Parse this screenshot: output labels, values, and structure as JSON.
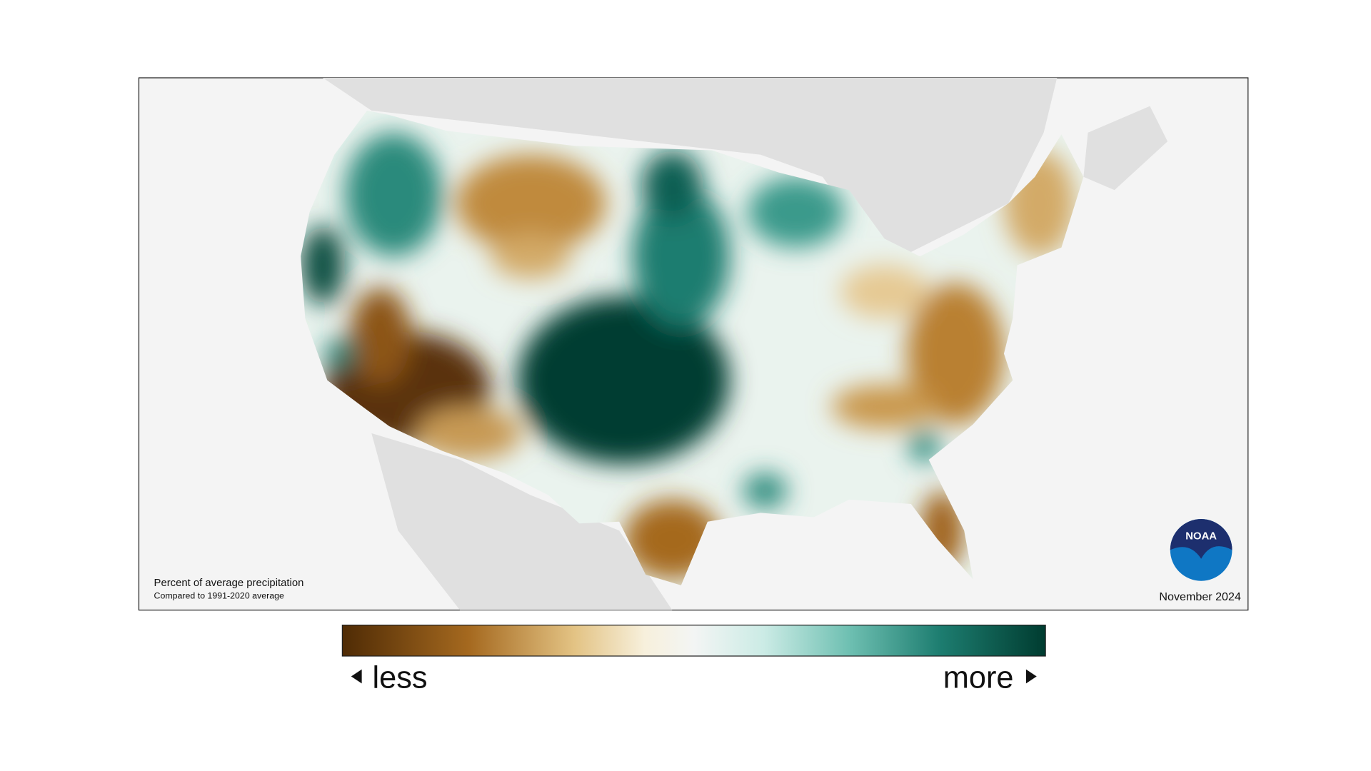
{
  "map": {
    "note_title": "Percent of average precipitation",
    "note_subtitle": "Compared to 1991-2020 average",
    "date": "November 2024",
    "logo": "NOAA"
  },
  "legend": {
    "less": "less",
    "more": "more"
  }
}
